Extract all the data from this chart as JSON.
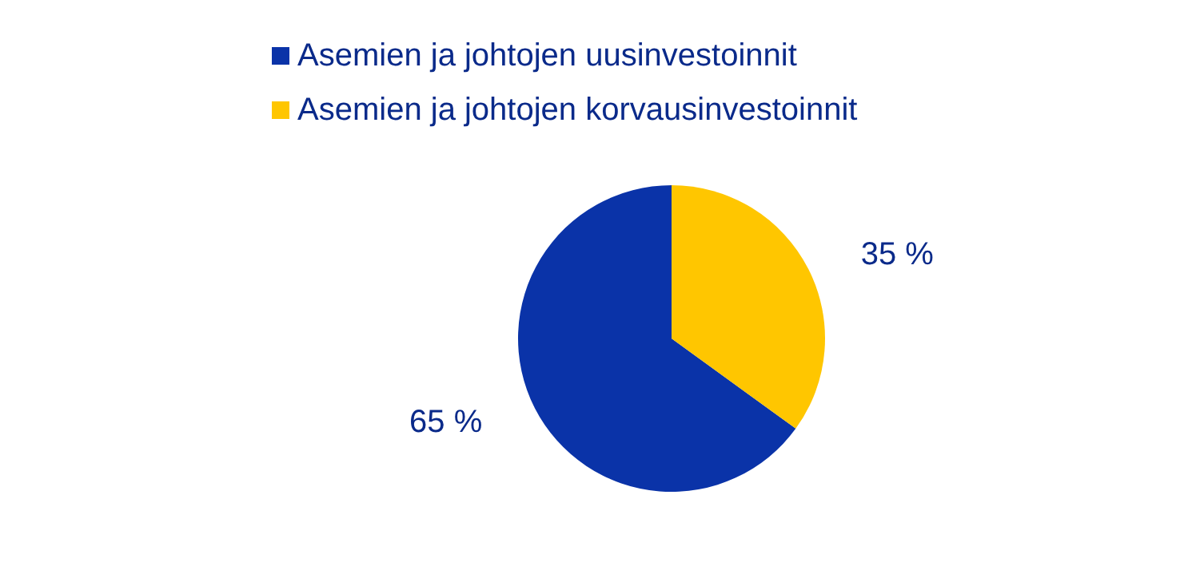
{
  "chart_data": {
    "type": "pie",
    "categories": [
      "Asemien ja johtojen uusinvestoinnit",
      "Asemien ja johtojen korvausinvestoinnit"
    ],
    "values": [
      65,
      35
    ],
    "colors": [
      "#0a33a8",
      "#ffc600"
    ],
    "value_labels": [
      "65 %",
      "35 %"
    ],
    "legend": "top"
  }
}
